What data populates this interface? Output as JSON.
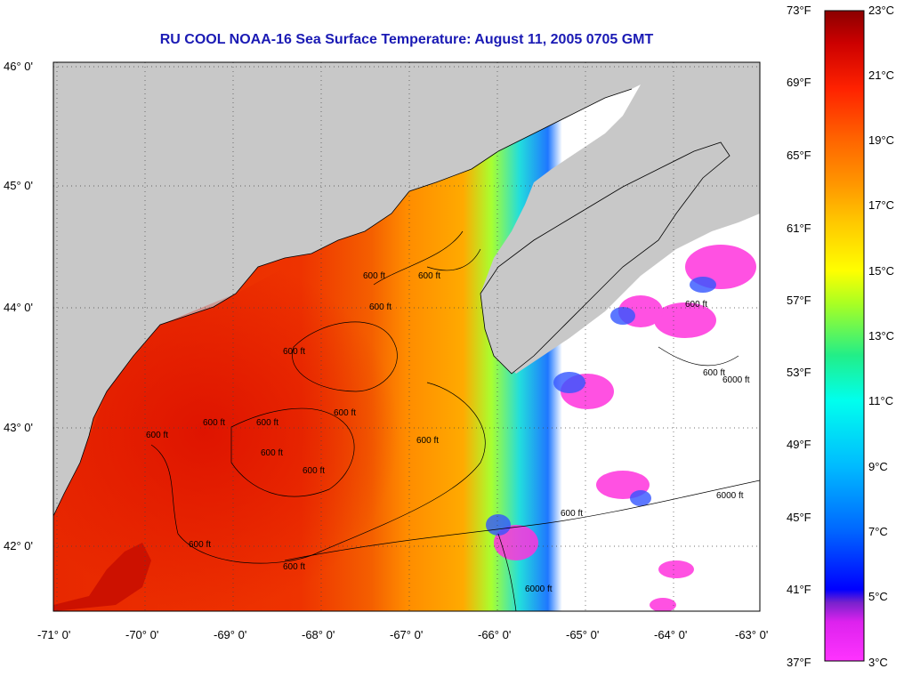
{
  "title": "RU COOL  NOAA-16  Sea Surface Temperature:  August 11, 2005 0705 GMT",
  "map": {
    "lon_ticks": [
      "-71° 0'",
      "-70° 0'",
      "-69° 0'",
      "-68° 0'",
      "-67° 0'",
      "-66° 0'",
      "-65° 0'",
      "-64° 0'",
      "-63° 0'"
    ],
    "lat_ticks": [
      "46° 0'",
      "45° 0'",
      "44° 0'",
      "43° 0'",
      "42° 0'"
    ],
    "contour_labels": [
      "600 ft",
      "600 ft",
      "600 ft",
      "600 ft",
      "600 ft",
      "600 ft",
      "600 ft",
      "600 ft",
      "600 ft",
      "600 ft",
      "600 ft",
      "600 ft",
      "600 ft",
      "600 ft",
      "600 ft",
      "600 ft",
      "6000 ft",
      "6000 ft",
      "6000 ft"
    ],
    "colors": {
      "land": "#c8c8c8",
      "no_data": "#ffffff",
      "grid": "#555555"
    }
  },
  "colorbar": {
    "fahrenheit": [
      "73°F",
      "69°F",
      "65°F",
      "61°F",
      "57°F",
      "53°F",
      "49°F",
      "45°F",
      "41°F",
      "37°F"
    ],
    "celsius": [
      "23°C",
      "21°C",
      "19°C",
      "17°C",
      "15°C",
      "13°C",
      "11°C",
      "9°C",
      "7°C",
      "5°C",
      "3°C"
    ],
    "range_c": [
      3,
      23
    ],
    "palette": [
      "#ff33ff",
      "#dd22ee",
      "#7722cc",
      "#0000ff",
      "#0066ff",
      "#00bbff",
      "#00ffee",
      "#22ee88",
      "#aaff22",
      "#ffff00",
      "#ffcc00",
      "#ff9900",
      "#ff6600",
      "#ff2200",
      "#cc0000",
      "#8b0000"
    ]
  }
}
